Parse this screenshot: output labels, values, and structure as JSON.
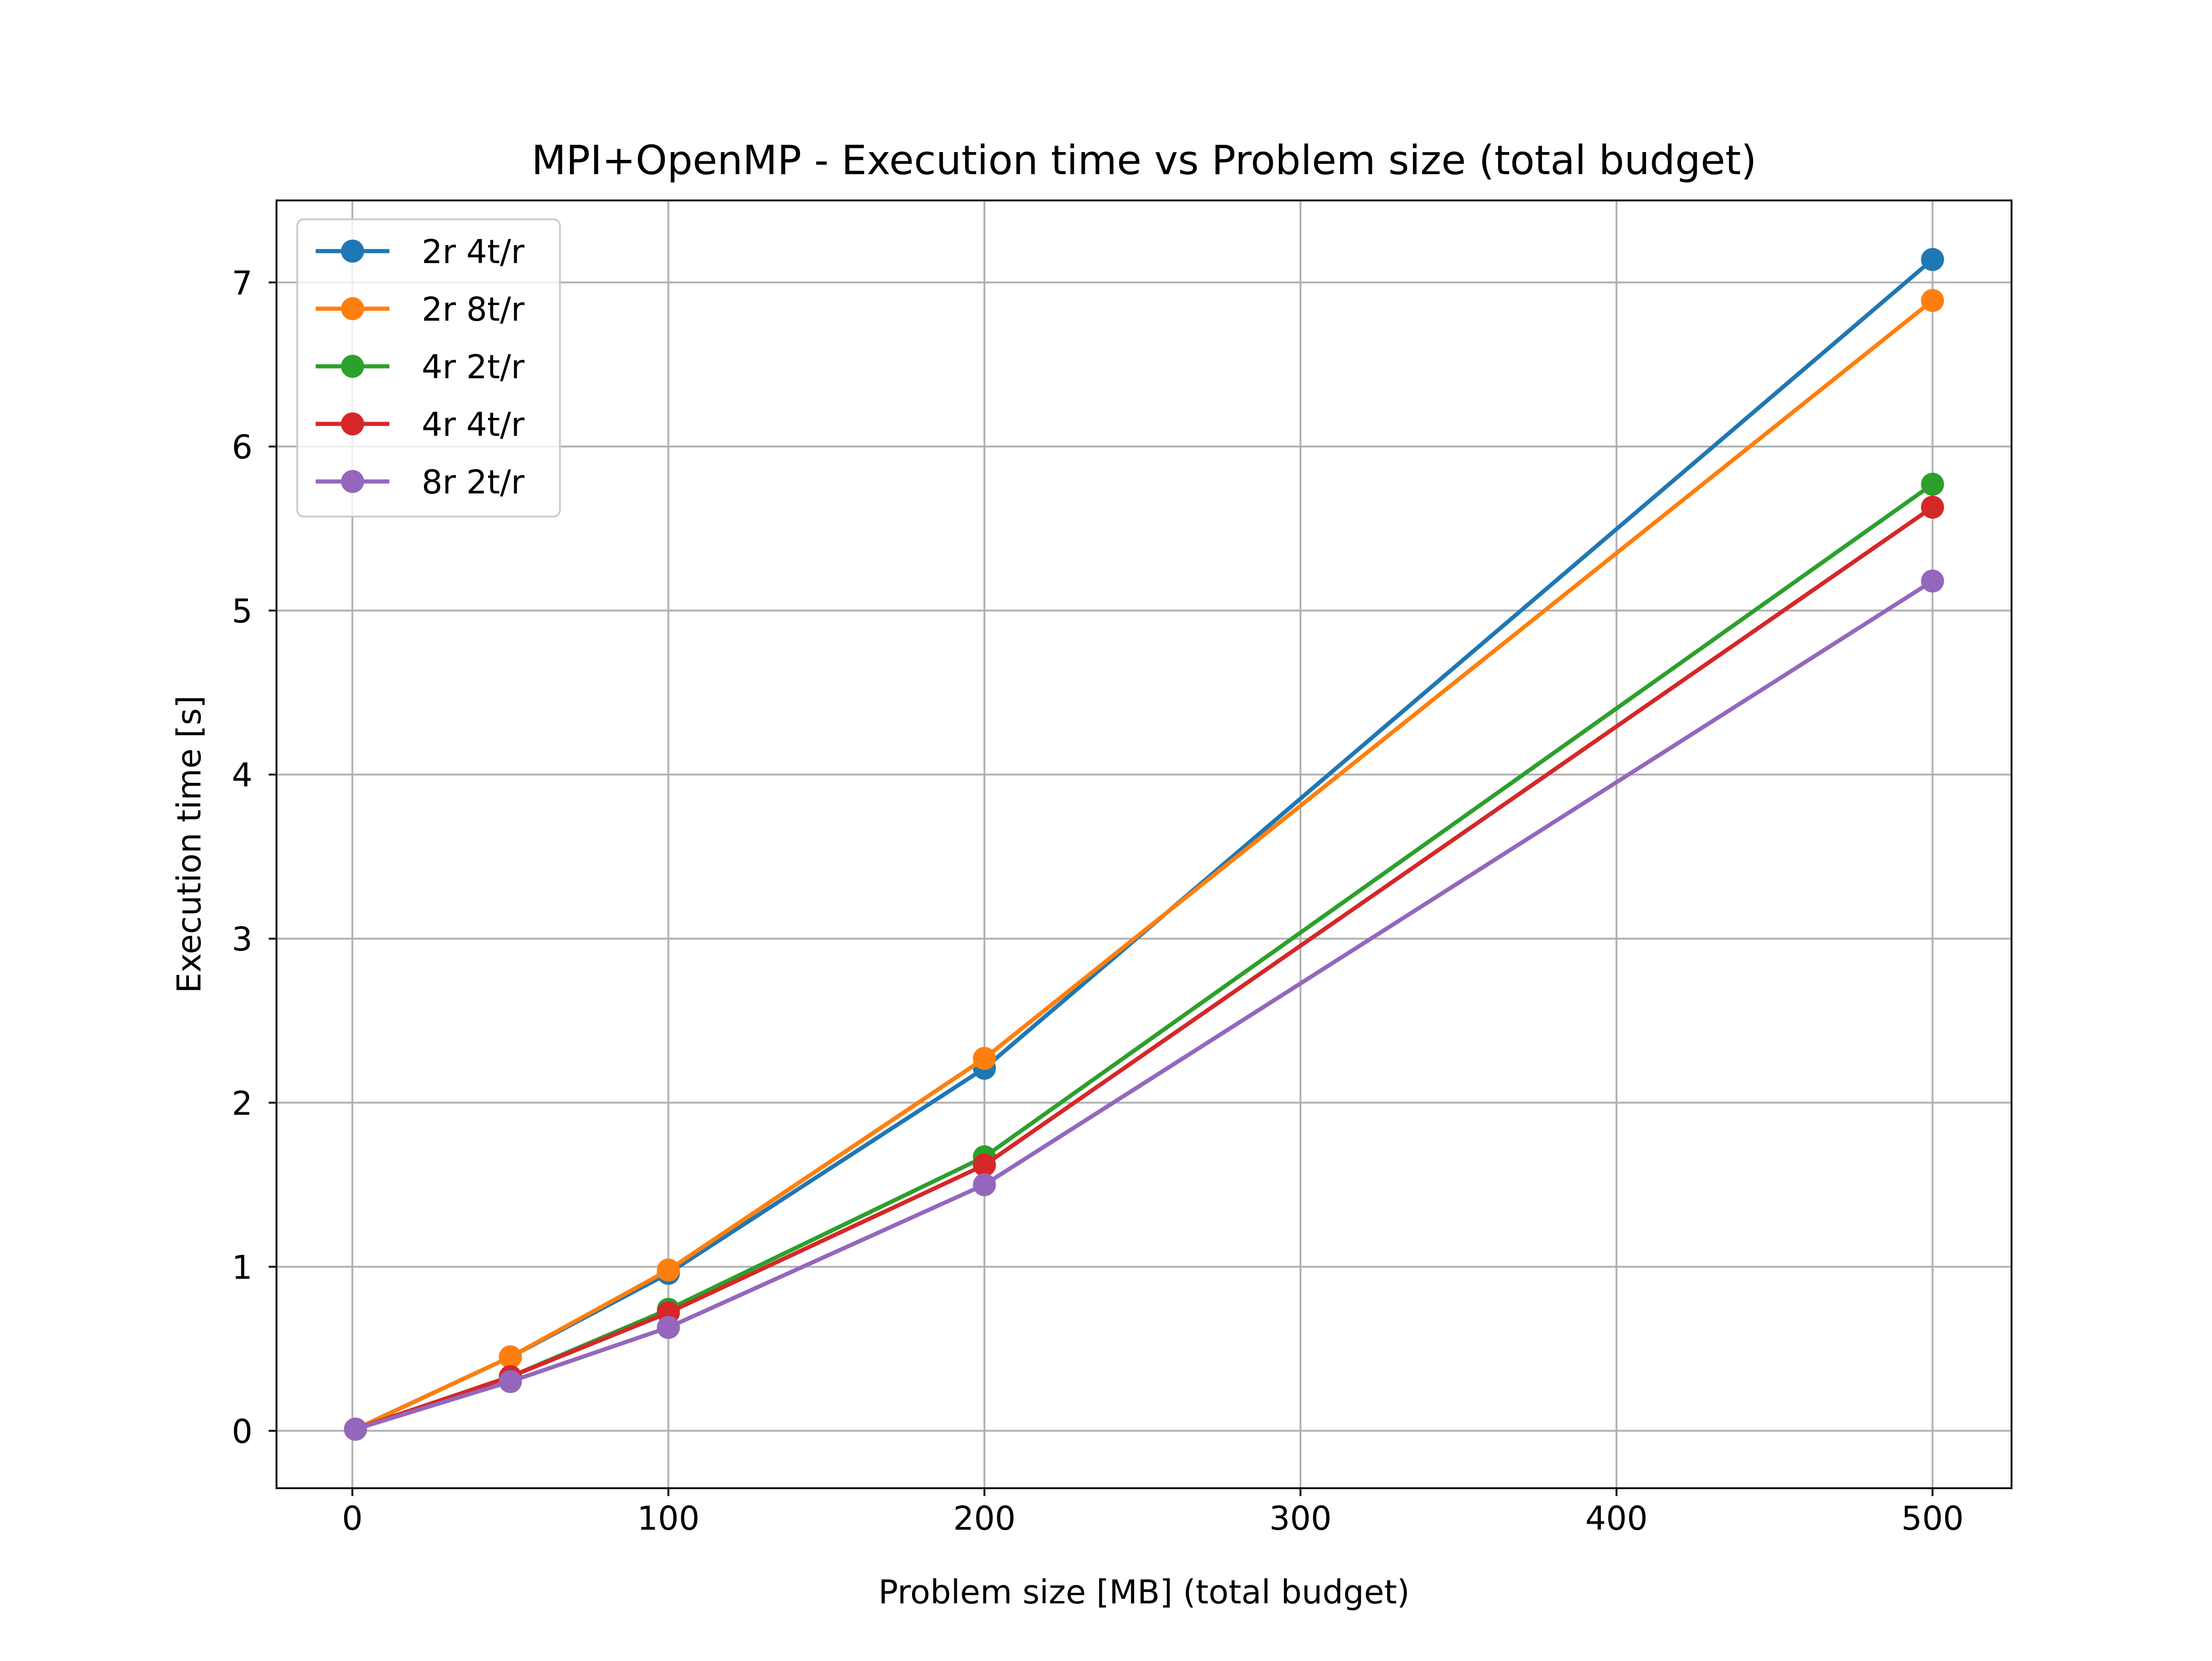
{
  "chart_data": {
    "type": "line",
    "title": "MPI+OpenMP - Execution time vs Problem size (total budget)",
    "xlabel": "Problem size [MB] (total budget)",
    "ylabel": "Execution time [s]",
    "xlim": [
      -24,
      525
    ],
    "ylim": [
      -0.35,
      7.5
    ],
    "xticks": [
      0,
      100,
      200,
      300,
      400,
      500
    ],
    "yticks": [
      0,
      1,
      2,
      3,
      4,
      5,
      6,
      7
    ],
    "xtick_labels": [
      "0",
      "100",
      "200",
      "300",
      "400",
      "500"
    ],
    "ytick_labels": [
      "0",
      "1",
      "2",
      "3",
      "4",
      "5",
      "6",
      "7"
    ],
    "grid": true,
    "legend_position": "top-left",
    "x": [
      1,
      50,
      100,
      200,
      500
    ],
    "series": [
      {
        "name": "2r 4t/r",
        "color": "#1f77b4",
        "values": [
          0.01,
          0.45,
          0.96,
          2.21,
          7.14
        ]
      },
      {
        "name": "2r 8t/r",
        "color": "#ff7f0e",
        "values": [
          0.01,
          0.45,
          0.98,
          2.27,
          6.89
        ]
      },
      {
        "name": "4r 2t/r",
        "color": "#2ca02c",
        "values": [
          0.01,
          0.33,
          0.74,
          1.67,
          5.77
        ]
      },
      {
        "name": "4r 4t/r",
        "color": "#d62728",
        "values": [
          0.01,
          0.33,
          0.72,
          1.62,
          5.63
        ]
      },
      {
        "name": "8r 2t/r",
        "color": "#9467bd",
        "values": [
          0.01,
          0.3,
          0.63,
          1.5,
          5.18
        ]
      }
    ]
  }
}
